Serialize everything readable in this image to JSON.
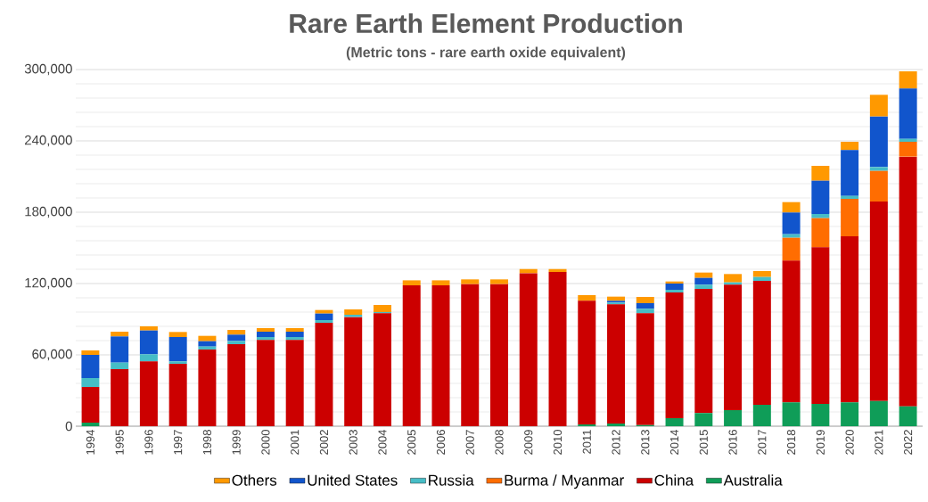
{
  "chart_data": {
    "type": "bar",
    "title": "Rare Earth Element Production",
    "subtitle": "(Metric tons - rare earth oxide equivalent)",
    "categories": [
      "1994",
      "1995",
      "1996",
      "1997",
      "1998",
      "1999",
      "2000",
      "2001",
      "2002",
      "2003",
      "2004",
      "2005",
      "2006",
      "2007",
      "2008",
      "2009",
      "2010",
      "2011",
      "2012",
      "2013",
      "2014",
      "2015",
      "2016",
      "2017",
      "2018",
      "2019",
      "2020",
      "2021",
      "2022"
    ],
    "stacked": true,
    "series": [
      {
        "name": "Australia",
        "color": "#0f9d58",
        "values": [
          3000,
          0,
          0,
          0,
          0,
          0,
          0,
          0,
          0,
          0,
          0,
          0,
          0,
          0,
          0,
          0,
          0,
          1500,
          2250,
          1000,
          6750,
          11000,
          13500,
          18000,
          20000,
          18750,
          20000,
          21250,
          16750
        ]
      },
      {
        "name": "China",
        "color": "#cc0000",
        "values": [
          30000,
          48000,
          54500,
          52500,
          64500,
          69000,
          72500,
          72500,
          87000,
          91750,
          95000,
          118500,
          118500,
          119500,
          119500,
          128700,
          129700,
          104000,
          100250,
          94000,
          105750,
          104500,
          105500,
          104250,
          119250,
          131750,
          139750,
          167750,
          210000
        ]
      },
      {
        "name": "Burma / Myanmar",
        "color": "#ff6d01",
        "values": [
          0,
          0,
          0,
          0,
          0,
          0,
          0,
          0,
          0,
          0,
          0,
          0,
          0,
          0,
          0,
          0,
          0,
          0,
          0,
          0,
          0,
          0,
          0,
          0,
          19250,
          24500,
          31500,
          25750,
          12500
        ]
      },
      {
        "name": "Russia",
        "color": "#46bdc6",
        "values": [
          7500,
          5500,
          6000,
          2000,
          2500,
          2700,
          2500,
          2500,
          2250,
          2000,
          1000,
          0,
          0,
          0,
          0,
          0,
          0,
          0,
          1500,
          3750,
          2250,
          3500,
          2000,
          3250,
          3000,
          3500,
          2500,
          3250,
          2500
        ]
      },
      {
        "name": "United States",
        "color": "#1155cc",
        "values": [
          19500,
          22000,
          20000,
          20500,
          4500,
          5300,
          4500,
          4500,
          5500,
          0,
          0,
          0,
          0,
          0,
          0,
          0,
          0,
          0,
          1500,
          4750,
          5250,
          5750,
          0,
          0,
          18250,
          28000,
          38500,
          42500,
          42250
        ]
      },
      {
        "name": "Others",
        "color": "#ff9900",
        "values": [
          3750,
          4000,
          3500,
          4250,
          4500,
          4000,
          3000,
          3000,
          3000,
          4500,
          6000,
          4200,
          4200,
          4000,
          4000,
          3500,
          2500,
          4750,
          3500,
          5250,
          1750,
          4500,
          7000,
          5000,
          8750,
          12500,
          7000,
          18250,
          14500
        ]
      }
    ],
    "ylim": [
      0,
      300000
    ],
    "yticks": [
      {
        "value": 0,
        "label": "0"
      },
      {
        "value": 60000,
        "label": "60,000"
      },
      {
        "value": 120000,
        "label": "120,000"
      },
      {
        "value": 180000,
        "label": "180,000"
      },
      {
        "value": 240000,
        "label": "240,000"
      },
      {
        "value": 300000,
        "label": "300,000"
      }
    ],
    "grid": "y",
    "legend": "bottom"
  }
}
